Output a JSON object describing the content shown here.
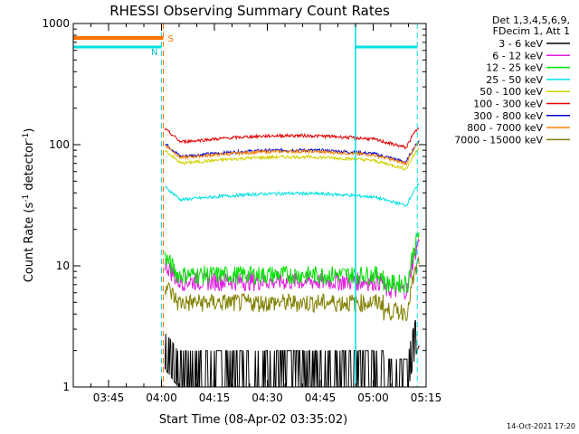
{
  "chart_data": {
    "type": "line",
    "title": "RHESSI Observing Summary Count Rates",
    "xlabel": "Start Time (08-Apr-02 03:35:02)",
    "ylabel_main": "Count Rate (s",
    "ylabel_sup1": "-1",
    "ylabel_mid": " detector",
    "ylabel_sup2": "-1",
    "ylabel_end": ")",
    "yscale": "log",
    "ylim": [
      1,
      1000
    ],
    "xlim_min": [
      0,
      100
    ],
    "xticks": [
      {
        "label": "03:45",
        "min": 10
      },
      {
        "label": "04:00",
        "min": 25
      },
      {
        "label": "04:15",
        "min": 40
      },
      {
        "label": "04:30",
        "min": 55
      },
      {
        "label": "04:45",
        "min": 70
      },
      {
        "label": "05:00",
        "min": 85
      },
      {
        "label": "05:15",
        "min": 100
      }
    ],
    "yticks": [
      {
        "label": "1",
        "value": 1
      },
      {
        "label": "10",
        "value": 10
      },
      {
        "label": "100",
        "value": 100
      },
      {
        "label": "1000",
        "value": 1000
      }
    ],
    "legend_header": [
      "Det 1,3,4,5,6,9,",
      "FDecim 1, Att 1"
    ],
    "series": [
      {
        "name": "3 - 6 keV",
        "color": "#000000",
        "profile": "low",
        "level": 2.0
      },
      {
        "name": "6 - 12 keV",
        "color": "#e020e0",
        "profile": "low",
        "level": 7.5
      },
      {
        "name": "12 - 25 keV",
        "color": "#00e000",
        "profile": "low",
        "level": 8.5
      },
      {
        "name": "25 - 50 keV",
        "color": "#00e0e0",
        "profile": "hump",
        "level": 36
      },
      {
        "name": "50 - 100 keV",
        "color": "#d0d000",
        "profile": "hump",
        "level": 72
      },
      {
        "name": "100 - 300 keV",
        "color": "#e00000",
        "profile": "hump",
        "level": 108
      },
      {
        "name": "300 - 800 keV",
        "color": "#0000d0",
        "profile": "hump",
        "level": 82
      },
      {
        "name": "800 - 7000 keV",
        "color": "#ff8000",
        "profile": "hump",
        "level": 80
      },
      {
        "name": "7000 - 15000 keV",
        "color": "#808000",
        "profile": "low",
        "level": 5.0
      }
    ],
    "data_start_min": 26,
    "data_end_min": 98,
    "night_intervals": [
      {
        "start_min": 0,
        "end_min": 25,
        "label": "N"
      },
      {
        "start_min": 80,
        "end_min": 97.5,
        "label": ""
      }
    ],
    "saa_interval": {
      "start_min": 0,
      "end_min": 25.5,
      "label": "S"
    },
    "footer_date": "14-Oct-2021 17:20"
  }
}
